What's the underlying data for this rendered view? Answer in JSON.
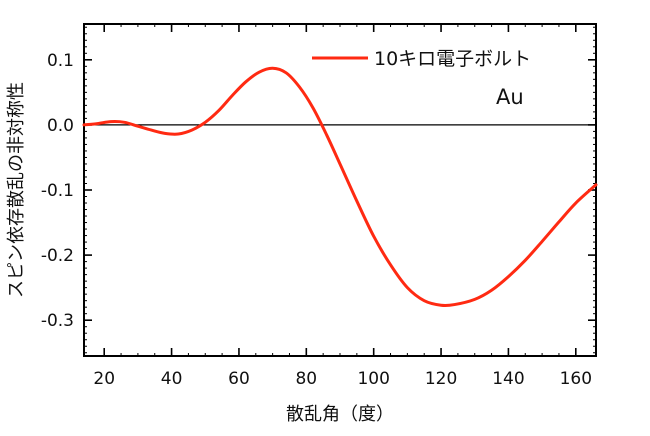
{
  "chart_data": {
    "type": "line",
    "title": "",
    "xlabel": "散乱角（度）",
    "ylabel": "スピン依存散乱の非対称性",
    "xlim": [
      14,
      166
    ],
    "ylim": [
      -0.355,
      0.155
    ],
    "x_ticks": [
      20,
      40,
      60,
      80,
      100,
      120,
      140,
      160
    ],
    "y_ticks": [
      0.1,
      0.0,
      -0.1,
      -0.2,
      -0.3
    ],
    "y_tick_labels": [
      "0.1",
      "0.0",
      "-0.1",
      "-0.2",
      "-0.3"
    ],
    "zero_line": 0.0,
    "grid": false,
    "legend_position": "top-right",
    "annotation": "Au",
    "series": [
      {
        "name": "10キロ電子ボルト",
        "color": "#ff2a12",
        "x": [
          14,
          18,
          22,
          26,
          30,
          34,
          38,
          42,
          46,
          50,
          54,
          58,
          62,
          66,
          70,
          74,
          78,
          82,
          86,
          90,
          95,
          100,
          105,
          110,
          115,
          120,
          124,
          130,
          135,
          140,
          145,
          150,
          155,
          160,
          166
        ],
        "y": [
          0.0,
          0.002,
          0.005,
          0.004,
          -0.002,
          -0.008,
          -0.013,
          -0.014,
          -0.008,
          0.004,
          0.022,
          0.045,
          0.066,
          0.081,
          0.087,
          0.08,
          0.058,
          0.026,
          -0.015,
          -0.06,
          -0.117,
          -0.171,
          -0.215,
          -0.25,
          -0.27,
          -0.277,
          -0.276,
          -0.268,
          -0.254,
          -0.233,
          -0.208,
          -0.179,
          -0.149,
          -0.12,
          -0.092
        ]
      }
    ]
  }
}
